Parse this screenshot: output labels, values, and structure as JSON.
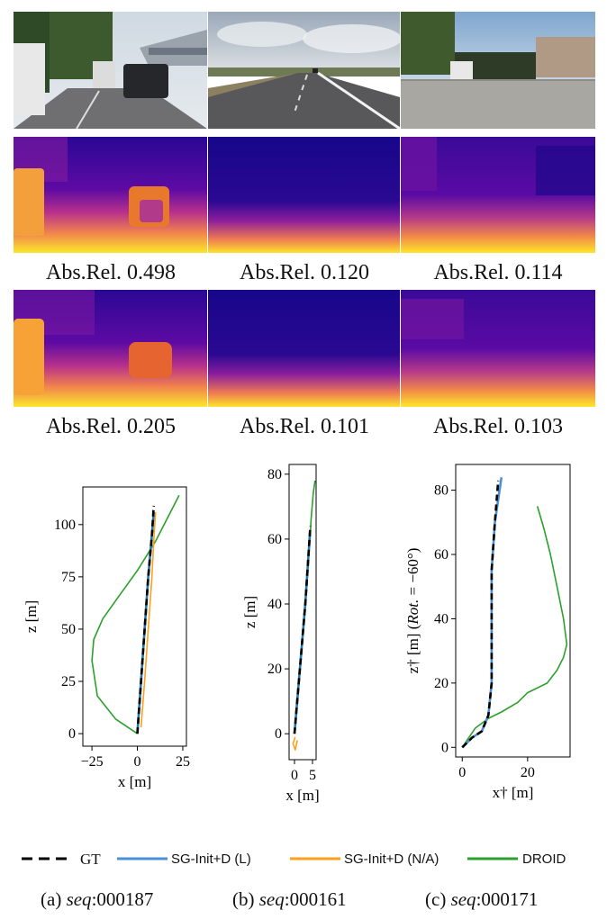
{
  "depth_rows": [
    {
      "metric_label": "Abs.Rel.",
      "values": [
        "0.498",
        "0.120",
        "0.114"
      ]
    },
    {
      "metric_label": "Abs.Rel.",
      "values": [
        "0.205",
        "0.101",
        "0.103"
      ]
    }
  ],
  "chart_data": [
    {
      "type": "line",
      "title": "",
      "xlabel": "x [m]",
      "ylabel": "z [m]",
      "xlim": [
        -30,
        27
      ],
      "ylim": [
        -6,
        118
      ],
      "xticks": [
        -25,
        0,
        25
      ],
      "yticks": [
        0,
        25,
        50,
        75,
        100
      ],
      "series": [
        {
          "name": "DROID",
          "color": "#2ca02c",
          "x": [
            0,
            -12,
            -22,
            -25,
            -24,
            -19,
            -10,
            0,
            10,
            23
          ],
          "y": [
            0,
            7,
            18,
            35,
            45,
            55,
            66,
            78,
            92,
            114
          ]
        },
        {
          "name": "SG-Init+D (N/A)",
          "color": "#ff9f1c",
          "x": [
            2,
            4,
            6,
            8,
            9,
            10
          ],
          "y": [
            3,
            25,
            50,
            75,
            92,
            106
          ]
        },
        {
          "name": "SG-Init+D (L)",
          "color": "#1f77b4",
          "x": [
            0,
            2,
            4,
            6,
            8,
            9
          ],
          "y": [
            0,
            25,
            50,
            75,
            95,
            106
          ]
        },
        {
          "name": "GT",
          "color": "#000000",
          "x": [
            0,
            2,
            4,
            6,
            8,
            9
          ],
          "y": [
            0,
            25,
            50,
            75,
            95,
            109
          ]
        }
      ]
    },
    {
      "type": "line",
      "title": "",
      "xlabel": "x [m]",
      "ylabel": "z [m]",
      "xlim": [
        -1.5,
        6
      ],
      "ylim": [
        -8,
        83
      ],
      "xticks": [
        0,
        5
      ],
      "yticks": [
        0,
        20,
        40,
        60,
        80
      ],
      "series": [
        {
          "name": "DROID",
          "color": "#2ca02c",
          "x": [
            4.3,
            4.6,
            5.2,
            5.7
          ],
          "y": [
            60,
            66,
            74,
            78
          ]
        },
        {
          "name": "SG-Init+D (N/A)",
          "color": "#ff9f1c",
          "x": [
            0.2,
            -0.4,
            0.2,
            0.8
          ],
          "y": [
            -1,
            -3,
            -5,
            -2
          ]
        },
        {
          "name": "SG-Init+D (L)",
          "color": "#1f77b4",
          "x": [
            0,
            1.5,
            3,
            4.3
          ],
          "y": [
            0,
            20,
            40,
            62
          ]
        },
        {
          "name": "GT",
          "color": "#000000",
          "x": [
            0,
            1.5,
            3,
            4.4
          ],
          "y": [
            0,
            20,
            40,
            64
          ]
        }
      ]
    },
    {
      "type": "line",
      "title": "",
      "xlabel": "x† [m]",
      "ylabel": "z† [m] (Rot. = −60°)",
      "ylabel_parts": [
        "z† [m] (",
        "Rot.",
        " = −60°)"
      ],
      "xlim": [
        -2,
        33
      ],
      "ylim": [
        -3,
        88
      ],
      "xticks": [
        0,
        20
      ],
      "yticks": [
        0,
        20,
        40,
        60,
        80
      ],
      "series": [
        {
          "name": "DROID",
          "color": "#2ca02c",
          "x": [
            0,
            2,
            4,
            8,
            12,
            17,
            20,
            22,
            26,
            29,
            31,
            32,
            31,
            29,
            27,
            25,
            23
          ],
          "y": [
            0,
            3,
            6,
            9,
            11,
            14,
            17,
            18,
            20,
            24,
            28,
            32,
            40,
            50,
            60,
            68,
            75
          ]
        },
        {
          "name": "SG-Init+D (L)",
          "color": "#4a90d9",
          "x": [
            0,
            3,
            6,
            8,
            9,
            9,
            9,
            9,
            10,
            12
          ],
          "y": [
            0,
            3,
            5,
            10,
            20,
            30,
            40,
            55,
            70,
            84
          ]
        },
        {
          "name": "GT",
          "color": "#000000",
          "x": [
            0,
            3,
            6,
            8,
            9,
            9,
            9,
            9,
            10,
            11
          ],
          "y": [
            0,
            3,
            5,
            10,
            20,
            30,
            40,
            55,
            70,
            83
          ]
        }
      ]
    }
  ],
  "legend": [
    {
      "label": "GT",
      "color": "#000000",
      "style": "dashed"
    },
    {
      "label": "SG-Init+D (L)",
      "color": "#4a90d9",
      "style": "solid"
    },
    {
      "label": "SG-Init+D (N/A)",
      "color": "#ff9f1c",
      "style": "solid"
    },
    {
      "label": "DROID",
      "color": "#2ca02c",
      "style": "solid"
    }
  ],
  "captions": [
    {
      "prefix": "(a) ",
      "seq_label": "seq",
      "id": ":000187"
    },
    {
      "prefix": "(b) ",
      "seq_label": "seq",
      "id": ":000161"
    },
    {
      "prefix": "(c) ",
      "seq_label": "seq",
      "id": ":000171"
    }
  ]
}
